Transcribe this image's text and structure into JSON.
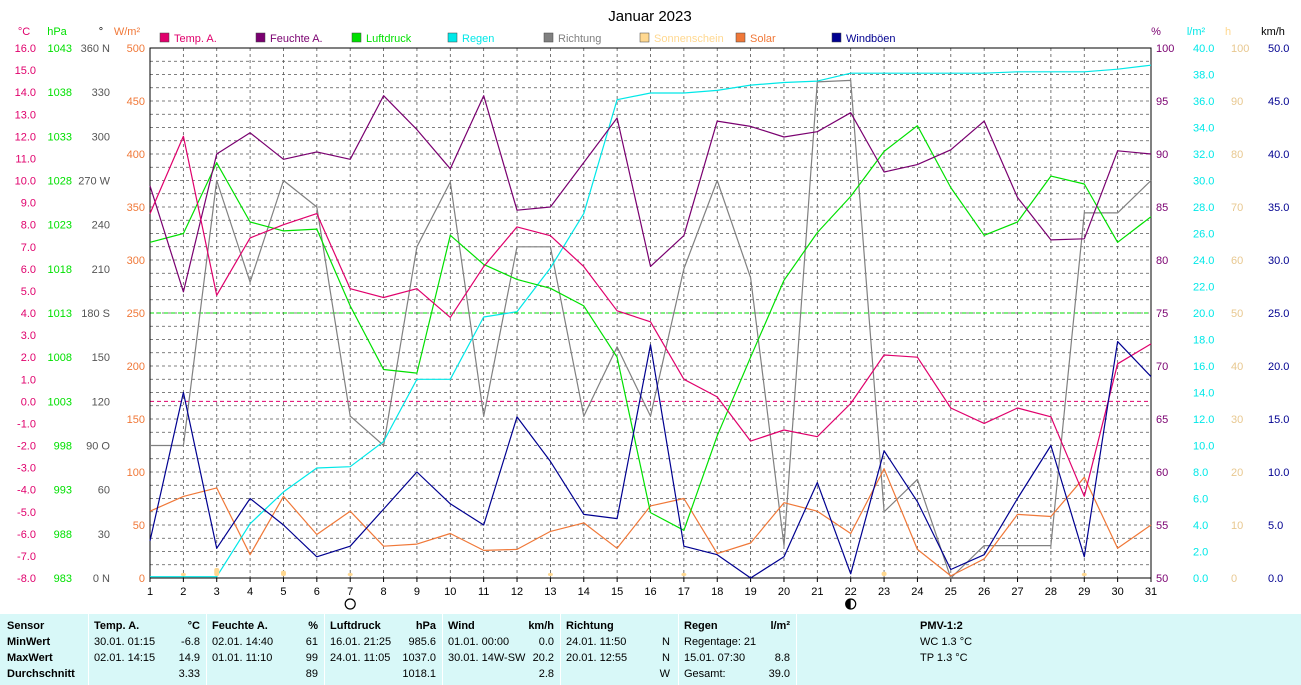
{
  "title": "Januar 2023",
  "axes": {
    "left_units": [
      "°C",
      "hPa",
      "°",
      "W/m²"
    ],
    "right_units": [
      "%",
      "l/m²",
      "h",
      "km/h"
    ],
    "temp_ticks": [
      "16.0",
      "15.0",
      "14.0",
      "13.0",
      "12.0",
      "11.0",
      "10.0",
      "9.0",
      "8.0",
      "7.0",
      "6.0",
      "5.0",
      "4.0",
      "3.0",
      "2.0",
      "1.0",
      "0.0",
      "-1.0",
      "-2.0",
      "-3.0",
      "-4.0",
      "-5.0",
      "-6.0",
      "-7.0",
      "-8.0"
    ],
    "pressure_ticks": [
      "1043",
      "1038",
      "1033",
      "1028",
      "1023",
      "1018",
      "1013",
      "1008",
      "1003",
      "998",
      "993",
      "988",
      "983"
    ],
    "direction_ticks": [
      "360 N",
      "330",
      "300",
      "270 W",
      "240",
      "210",
      "180 S",
      "150",
      "120",
      "90 O",
      "60",
      "30",
      "0 N"
    ],
    "solar_ticks": [
      "500",
      "450",
      "400",
      "350",
      "300",
      "250",
      "200",
      "150",
      "100",
      "50",
      "0"
    ],
    "humidity_ticks": [
      "100",
      "95",
      "90",
      "85",
      "80",
      "75",
      "70",
      "65",
      "60",
      "55",
      "50"
    ],
    "rain_ticks": [
      "40.0",
      "38.0",
      "36.0",
      "34.0",
      "32.0",
      "30.0",
      "28.0",
      "26.0",
      "24.0",
      "22.0",
      "20.0",
      "18.0",
      "16.0",
      "14.0",
      "12.0",
      "10.0",
      "8.0",
      "6.0",
      "4.0",
      "2.0",
      "0.0"
    ],
    "sunshine_ticks": [
      "100",
      "90",
      "80",
      "70",
      "60",
      "50",
      "40",
      "30",
      "20",
      "10",
      "0"
    ],
    "wind_ticks": [
      "50.0",
      "45.0",
      "40.0",
      "35.0",
      "30.0",
      "25.0",
      "20.0",
      "15.0",
      "10.0",
      "5.0",
      "0.0"
    ],
    "x_ticks": [
      "1",
      "2",
      "3",
      "4",
      "5",
      "6",
      "7",
      "8",
      "9",
      "10",
      "11",
      "12",
      "13",
      "14",
      "15",
      "16",
      "17",
      "18",
      "19",
      "20",
      "21",
      "22",
      "23",
      "24",
      "25",
      "26",
      "27",
      "28",
      "29",
      "30",
      "31"
    ]
  },
  "legend": [
    {
      "label": "Temp. A.",
      "color": "#e0006c"
    },
    {
      "label": "Feuchte A.",
      "color": "#7a0070"
    },
    {
      "label": "Luftdruck",
      "color": "#00e000"
    },
    {
      "label": "Regen",
      "color": "#00e8e8"
    },
    {
      "label": "Richtung",
      "color": "#808080"
    },
    {
      "label": "Sonnenschein",
      "color": "#ffd890"
    },
    {
      "label": "Solar",
      "color": "#f07838"
    },
    {
      "label": "Windböen",
      "color": "#000090"
    }
  ],
  "colors": {
    "temp": "#e0006c",
    "humidity": "#7a0070",
    "pressure": "#00e000",
    "rain": "#00e8e8",
    "direction": "#808080",
    "sunshine": "#ffd890",
    "solar": "#f07838",
    "wind": "#000090",
    "grid": "#555555",
    "stats_bg": "#d8f8f8"
  },
  "chart_data": {
    "type": "line",
    "title": "Januar 2023",
    "x": [
      1,
      2,
      3,
      4,
      5,
      6,
      7,
      8,
      9,
      10,
      11,
      12,
      13,
      14,
      15,
      16,
      17,
      18,
      19,
      20,
      21,
      22,
      23,
      24,
      25,
      26,
      27,
      28,
      29,
      30,
      31
    ],
    "series": [
      {
        "name": "Temp. A.",
        "unit": "°C",
        "axis": "temp",
        "ylim": [
          -8,
          16
        ],
        "values": [
          8.5,
          12.0,
          4.8,
          7.4,
          8.0,
          8.5,
          5.1,
          4.7,
          5.1,
          3.8,
          6.1,
          7.9,
          7.5,
          6.1,
          4.1,
          3.6,
          1.0,
          0.2,
          -1.8,
          -1.3,
          -1.6,
          -0.1,
          2.1,
          2.0,
          -0.3,
          -1.0,
          -0.3,
          -0.7,
          -4.3,
          1.7,
          2.6
        ]
      },
      {
        "name": "Feuchte A.",
        "unit": "%",
        "axis": "humidity",
        "ylim": [
          50,
          100
        ],
        "values": [
          87,
          77,
          90,
          92,
          89.5,
          90.2,
          89.5,
          95.5,
          92.3,
          88.6,
          95.5,
          84.7,
          85,
          89.2,
          93.4,
          79.4,
          82.3,
          93.1,
          92.6,
          91.6,
          92.1,
          93.9,
          88.3,
          89,
          90.4,
          93.1,
          85.9,
          81.9,
          82,
          90.3,
          90
        ]
      },
      {
        "name": "Luftdruck",
        "unit": "hPa",
        "axis": "pressure",
        "ylim": [
          983,
          1043
        ],
        "values": [
          1021,
          1022,
          1030,
          1023.3,
          1022.3,
          1022.5,
          1013.8,
          1006.6,
          1006.2,
          1021.8,
          1018.5,
          1016.8,
          1015.8,
          1013.8,
          1008,
          990.4,
          988.4,
          999.1,
          1008,
          1016.7,
          1022.1,
          1026.2,
          1031.3,
          1034.2,
          1027.2,
          1021.8,
          1023.3,
          1028.5,
          1027.6,
          1021,
          1023.9
        ]
      },
      {
        "name": "Regen",
        "unit": "l/m²",
        "axis": "rain",
        "ylim": [
          0,
          40
        ],
        "values": [
          0.1,
          0.1,
          0.1,
          4.1,
          6.5,
          8.3,
          8.4,
          10.3,
          15,
          15,
          19.7,
          20.1,
          23.4,
          27.5,
          36.1,
          36.6,
          36.6,
          36.8,
          37.2,
          37.4,
          37.5,
          38.1,
          38.1,
          38.1,
          38.1,
          38.1,
          38.2,
          38.2,
          38.2,
          38.4,
          38.7
        ]
      },
      {
        "name": "Richtung",
        "unit": "°",
        "axis": "direction",
        "ylim": [
          0,
          360
        ],
        "values": [
          90,
          90,
          270,
          201,
          270,
          252,
          110,
          90,
          225,
          269,
          110,
          225,
          225,
          110,
          157,
          110,
          210,
          270,
          204,
          22,
          337,
          338,
          45,
          67,
          0,
          22,
          22,
          22,
          248,
          248,
          270
        ]
      },
      {
        "name": "Sonnenschein",
        "unit": "h",
        "axis": "sunshine",
        "ylim": [
          0,
          100
        ],
        "values": [
          0,
          0.5,
          1.5,
          0,
          1,
          0,
          0.2,
          0,
          0,
          0,
          0,
          0,
          0.2,
          0,
          0,
          0,
          0.3,
          0,
          0,
          0,
          0,
          0,
          0.8,
          0,
          0,
          0,
          0,
          0,
          0.5,
          0,
          0
        ]
      },
      {
        "name": "Solar",
        "unit": "W/m²",
        "axis": "solar",
        "ylim": [
          0,
          500
        ],
        "values": [
          63,
          77,
          85,
          22,
          77,
          41,
          63,
          30,
          32,
          42,
          26,
          27,
          44,
          52,
          28,
          68,
          75,
          23,
          33,
          71,
          63,
          42,
          103,
          27,
          2,
          18,
          60,
          58,
          95,
          28,
          50
        ]
      },
      {
        "name": "Windböen",
        "unit": "km/h",
        "axis": "wind",
        "ylim": [
          0,
          50
        ],
        "values": [
          3.5,
          17.5,
          2.8,
          7.5,
          5,
          2,
          3,
          6.5,
          10,
          7,
          5,
          15.2,
          11,
          6,
          5.6,
          22,
          3,
          2.2,
          0,
          2,
          9,
          0.4,
          12,
          7.2,
          0.8,
          2.2,
          7.5,
          12.5,
          2,
          22.3,
          19
        ]
      }
    ],
    "reference_lines": [
      {
        "axis": "temp",
        "value": 0
      },
      {
        "axis": "pressure",
        "value": 1013
      }
    ],
    "moon_phases": [
      {
        "day": 7,
        "phase": "full"
      },
      {
        "day": 22,
        "phase": "new"
      }
    ],
    "grid": true,
    "legend_position": "top"
  },
  "stats": {
    "sensor": {
      "header": "Sensor",
      "rows": [
        "MinWert",
        "MaxWert",
        "Durchschnitt"
      ]
    },
    "temp": {
      "header": "Temp. A.",
      "unit": "°C",
      "rows": [
        [
          "30.01.  01:15",
          "-6.8"
        ],
        [
          "02.01.  14:15",
          "14.9"
        ],
        [
          "",
          "3.33"
        ]
      ]
    },
    "humidity": {
      "header": "Feuchte A.",
      "unit": "%",
      "rows": [
        [
          "02.01.  14:40",
          "61"
        ],
        [
          "01.01.  11:10",
          "99"
        ],
        [
          "",
          "89"
        ]
      ]
    },
    "pressure": {
      "header": "Luftdruck",
      "unit": "hPa",
      "rows": [
        [
          "16.01.  21:25",
          "985.6"
        ],
        [
          "24.01.  11:05",
          "1037.0"
        ],
        [
          "",
          "1018.1"
        ]
      ]
    },
    "wind": {
      "header": "Wind",
      "unit": "km/h",
      "rows": [
        [
          "01.01.  00:00",
          "0.0"
        ],
        [
          "30.01.  14W-SW",
          "20.2"
        ],
        [
          "",
          "2.8"
        ]
      ]
    },
    "direction": {
      "header": "Richtung",
      "rows": [
        [
          "24.01.  11:50",
          "N"
        ],
        [
          "20.01.  12:55",
          "N"
        ],
        [
          "",
          "W"
        ]
      ]
    },
    "rain": {
      "header": "Regen",
      "unit": "l/m²",
      "rows": [
        [
          "Regentage: 21",
          ""
        ],
        [
          "15.01.  07:30",
          "8.8"
        ],
        [
          "Gesamt:",
          "39.0"
        ]
      ]
    },
    "pmv": {
      "header": "PMV-1:2",
      "rows": [
        "WC 1.3 °C",
        "TP 1.3 °C"
      ]
    }
  }
}
